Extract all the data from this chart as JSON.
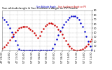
{
  "title": "Sun altitude/angle & Sun Incidence Angle on PV Panels",
  "legend_labels": [
    "Sun Altitude Angle",
    "Sun Incidence Angle on PV"
  ],
  "legend_colors": [
    "#0000cc",
    "#cc0000"
  ],
  "background_color": "#ffffff",
  "plot_bg_color": "#ffffff",
  "grid_color": "#aaaaaa",
  "ylim": [
    0,
    90
  ],
  "title_color": "#000000",
  "tick_color": "#000000",
  "blue_x": [
    0,
    1,
    2,
    3,
    4,
    5,
    6,
    7,
    8,
    9,
    10,
    11,
    12,
    13,
    14,
    15,
    16,
    17,
    18,
    19,
    20,
    21,
    22,
    23,
    24,
    25,
    26,
    27,
    28,
    29,
    30,
    31,
    32,
    33,
    34,
    35,
    36,
    37,
    38,
    39,
    40,
    41,
    42,
    43,
    44,
    45,
    46,
    47,
    48
  ],
  "blue_y": [
    75,
    70,
    65,
    58,
    50,
    41,
    32,
    22,
    12,
    3,
    0,
    0,
    0,
    0,
    0,
    0,
    0,
    0,
    0,
    0,
    0,
    0,
    0,
    0,
    0,
    0,
    0,
    5,
    15,
    25,
    35,
    44,
    52,
    59,
    65,
    70,
    74,
    77,
    78,
    77,
    74,
    69,
    62,
    53,
    43,
    32,
    21,
    10,
    1
  ],
  "red_x": [
    0,
    1,
    2,
    3,
    4,
    5,
    6,
    7,
    8,
    9,
    10,
    11,
    12,
    13,
    14,
    15,
    16,
    17,
    18,
    19,
    20,
    21,
    22,
    23,
    24,
    25,
    26,
    27,
    28,
    29,
    30,
    31,
    32,
    33,
    34,
    35,
    36,
    37,
    38,
    39,
    40,
    41,
    42,
    43,
    44,
    45,
    46,
    47,
    48
  ],
  "red_y": [
    5,
    8,
    13,
    18,
    24,
    30,
    36,
    41,
    46,
    50,
    52,
    54,
    54,
    53,
    51,
    48,
    44,
    40,
    35,
    29,
    33,
    42,
    49,
    55,
    59,
    61,
    61,
    60,
    57,
    53,
    48,
    42,
    36,
    29,
    22,
    15,
    9,
    4,
    1,
    0,
    0,
    0,
    1,
    3,
    6,
    10,
    15,
    20,
    26
  ],
  "xlim": [
    0,
    48
  ],
  "xtick_positions": [
    0,
    4,
    8,
    12,
    16,
    20,
    24,
    28,
    32,
    36,
    40,
    44,
    48
  ],
  "xtick_labels": [
    "4T 20:30",
    "4T 22:00",
    "4T 23:30",
    "5T 01:00",
    "5T 02:30",
    "5T 04:00",
    "5T 05:30",
    "5T 07:00",
    "5T 08:30",
    "5T 10:00",
    "5T 11:30",
    "5T 13:00",
    "5T 14:30"
  ],
  "ytick_values": [
    0,
    10,
    20,
    30,
    40,
    50,
    60,
    70,
    80,
    90
  ]
}
